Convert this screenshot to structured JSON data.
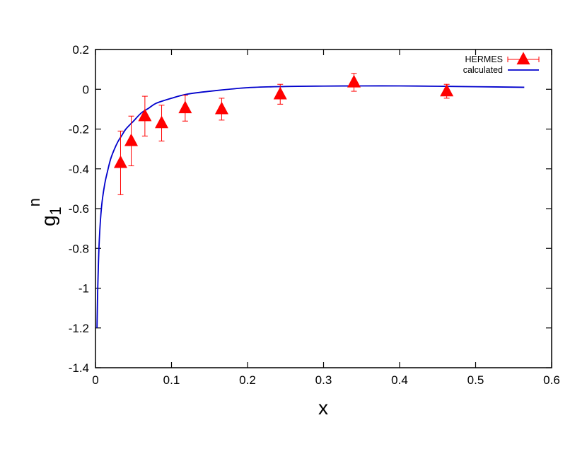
{
  "chart_data": {
    "type": "scatter",
    "xlabel": "x",
    "ylabel": {
      "base": "g",
      "sub": "1",
      "sup": "n"
    },
    "xlim": [
      0,
      0.6
    ],
    "ylim": [
      -1.4,
      0.2
    ],
    "xticks": [
      0,
      0.1,
      0.2,
      0.3,
      0.4,
      0.5,
      0.6
    ],
    "xtick_labels": [
      "0",
      "0.1",
      "0.2",
      "0.3",
      "0.4",
      "0.5",
      "0.6"
    ],
    "yticks": [
      0.2,
      0,
      -0.2,
      -0.4,
      -0.6,
      -0.8,
      -1,
      -1.2,
      -1.4
    ],
    "ytick_labels": [
      "0.2",
      "0",
      "-0.2",
      "-0.4",
      "-0.6",
      "-0.8",
      "-1",
      "-1.2",
      "-1.4"
    ],
    "grid": false,
    "legend_position": "top-right",
    "series": [
      {
        "name": "HERMES",
        "kind": "points-with-error-bars",
        "marker": "triangle",
        "color": "#ff0000",
        "points": [
          {
            "x": 0.033,
            "y": -0.37,
            "err": 0.16
          },
          {
            "x": 0.047,
            "y": -0.26,
            "err": 0.125
          },
          {
            "x": 0.065,
            "y": -0.135,
            "err": 0.1
          },
          {
            "x": 0.087,
            "y": -0.17,
            "err": 0.09
          },
          {
            "x": 0.118,
            "y": -0.095,
            "err": 0.065
          },
          {
            "x": 0.166,
            "y": -0.1,
            "err": 0.055
          },
          {
            "x": 0.243,
            "y": -0.025,
            "err": 0.05
          },
          {
            "x": 0.34,
            "y": 0.035,
            "err": 0.045
          },
          {
            "x": 0.462,
            "y": -0.01,
            "err": 0.035
          }
        ]
      },
      {
        "name": "calculated",
        "kind": "line",
        "color": "#0000cc",
        "x": [
          0.002,
          0.003,
          0.005,
          0.008,
          0.012,
          0.016,
          0.02,
          0.025,
          0.03,
          0.035,
          0.04,
          0.05,
          0.06,
          0.07,
          0.08,
          0.1,
          0.12,
          0.15,
          0.2,
          0.25,
          0.3,
          0.35,
          0.4,
          0.45,
          0.5,
          0.564
        ],
        "y": [
          -1.2,
          -1.0,
          -0.76,
          -0.59,
          -0.48,
          -0.41,
          -0.35,
          -0.3,
          -0.26,
          -0.23,
          -0.2,
          -0.16,
          -0.12,
          -0.095,
          -0.07,
          -0.045,
          -0.025,
          -0.01,
          0.008,
          0.014,
          0.016,
          0.017,
          0.017,
          0.015,
          0.013,
          0.01
        ]
      }
    ]
  }
}
